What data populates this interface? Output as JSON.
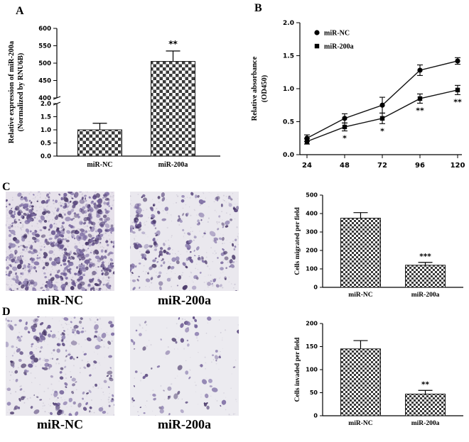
{
  "figure": {
    "panels": {
      "A": {
        "label": "A"
      },
      "B": {
        "label": "B"
      },
      "C": {
        "label": "C"
      },
      "D": {
        "label": "D"
      }
    }
  },
  "chart_data": [
    {
      "id": "panelA",
      "type": "bar",
      "title": "",
      "ylabel": "Relative expression of miR-200a\n(Normalized by RNU6B)",
      "xlabel": "",
      "categories": [
        "miR-NC",
        "miR-200a"
      ],
      "values": [
        1.0,
        505
      ],
      "errors": [
        0.25,
        30
      ],
      "annotations": [
        "",
        "**"
      ],
      "axis_break": {
        "lower": [
          0,
          2.0
        ],
        "upper": [
          400,
          600
        ],
        "lower_ticks": [
          0.0,
          0.5,
          1.0,
          1.5,
          2.0
        ],
        "upper_ticks": [
          400,
          450,
          500,
          550,
          600
        ]
      }
    },
    {
      "id": "panelB",
      "type": "line",
      "title": "",
      "ylabel": "Relative absorbance\n(OD450)",
      "xlabel": "",
      "x": [
        24,
        48,
        72,
        96,
        120
      ],
      "series": [
        {
          "name": "miR-NC",
          "marker": "circle",
          "values": [
            0.25,
            0.55,
            0.75,
            1.28,
            1.42
          ],
          "errors": [
            0.05,
            0.07,
            0.12,
            0.08,
            0.05
          ]
        },
        {
          "name": "miR-200a",
          "marker": "square",
          "values": [
            0.2,
            0.42,
            0.55,
            0.85,
            0.98
          ],
          "errors": [
            0.04,
            0.06,
            0.08,
            0.07,
            0.07
          ]
        }
      ],
      "point_annotations": [
        {
          "x": 48,
          "label": "*"
        },
        {
          "x": 72,
          "label": "*"
        },
        {
          "x": 96,
          "label": "**"
        },
        {
          "x": 120,
          "label": "**"
        }
      ],
      "ylim": [
        0,
        2.0
      ],
      "yticks": [
        0.0,
        0.5,
        1.0,
        1.5,
        2.0
      ],
      "legend_position": "top-left-inside"
    },
    {
      "id": "panelC",
      "type": "bar",
      "title": "",
      "ylabel": "Cells migrated per field",
      "xlabel": "",
      "categories": [
        "miR-NC",
        "miR-200a"
      ],
      "values": [
        375,
        120
      ],
      "errors": [
        30,
        15
      ],
      "annotations": [
        "",
        "***"
      ],
      "ylim": [
        0,
        500
      ],
      "yticks": [
        0,
        100,
        200,
        300,
        400,
        500
      ]
    },
    {
      "id": "panelD",
      "type": "bar",
      "title": "",
      "ylabel": "Cells invaded per field",
      "xlabel": "",
      "categories": [
        "miR-NC",
        "miR-200a"
      ],
      "values": [
        145,
        47
      ],
      "errors": [
        18,
        8
      ],
      "annotations": [
        "",
        "**"
      ],
      "ylim": [
        0,
        200
      ],
      "yticks": [
        0,
        50,
        100,
        150,
        200
      ]
    }
  ],
  "micrographs": [
    {
      "panel": "C",
      "label": "miR-NC",
      "density": 480,
      "seed": 11,
      "bg": "#e6e1ea"
    },
    {
      "panel": "C",
      "label": "miR-200a",
      "density": 150,
      "seed": 22,
      "bg": "#eae8ee"
    },
    {
      "panel": "D",
      "label": "miR-NC",
      "density": 140,
      "seed": 33,
      "bg": "#eae8ee"
    },
    {
      "panel": "D",
      "label": "miR-200a",
      "density": 55,
      "seed": 44,
      "bg": "#ecebf0"
    }
  ],
  "micro_style": {
    "palette": [
      "#5a487e",
      "#6e5c95",
      "#483768",
      "#7f6fa5",
      "#8d80b0"
    ],
    "speck_color": "#b5afc2"
  },
  "colors": {
    "axis": "#000000",
    "bar_fill_pattern": "#3a3a3a",
    "line_series": "#111111"
  }
}
